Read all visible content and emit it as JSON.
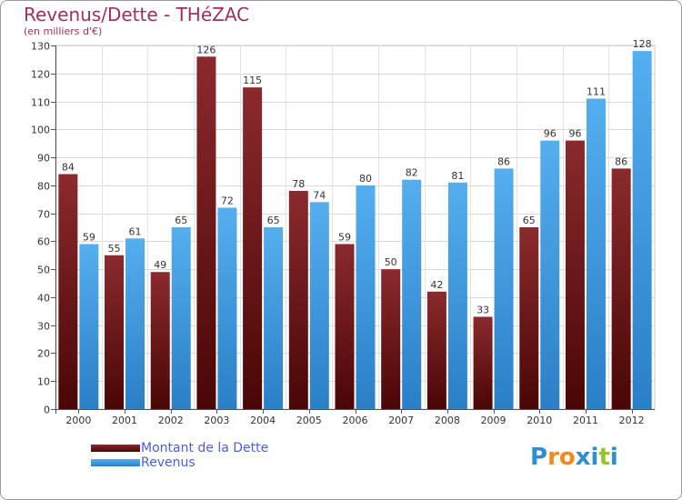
{
  "chart_data": {
    "type": "bar",
    "title": "Revenus/Dette - THéZAC",
    "subtitle": "(en milliers d'€)",
    "categories": [
      "2000",
      "2001",
      "2002",
      "2003",
      "2004",
      "2005",
      "2006",
      "2007",
      "2008",
      "2009",
      "2010",
      "2011",
      "2012"
    ],
    "series": [
      {
        "name": "Montant de la Dette",
        "values": [
          84,
          55,
          49,
          126,
          115,
          78,
          59,
          50,
          42,
          33,
          65,
          96,
          86
        ]
      },
      {
        "name": "Revenus",
        "values": [
          59,
          61,
          65,
          72,
          65,
          74,
          80,
          82,
          81,
          86,
          96,
          111,
          128
        ]
      }
    ],
    "ylim": [
      0,
      130
    ],
    "yticks": [
      0,
      10,
      20,
      30,
      40,
      50,
      60,
      70,
      80,
      90,
      100,
      110,
      120,
      130
    ],
    "grid": true,
    "legend_position": "bottom-left"
  },
  "colors": {
    "dette": "#7a1e22",
    "dette_dark": "#4a0808",
    "revenus": "#4aa3e6",
    "revenus_dark": "#2a7fc6",
    "title": "#a0305a",
    "legend_text": "#4a5ee0"
  },
  "logo": {
    "text": "Proxiti"
  }
}
